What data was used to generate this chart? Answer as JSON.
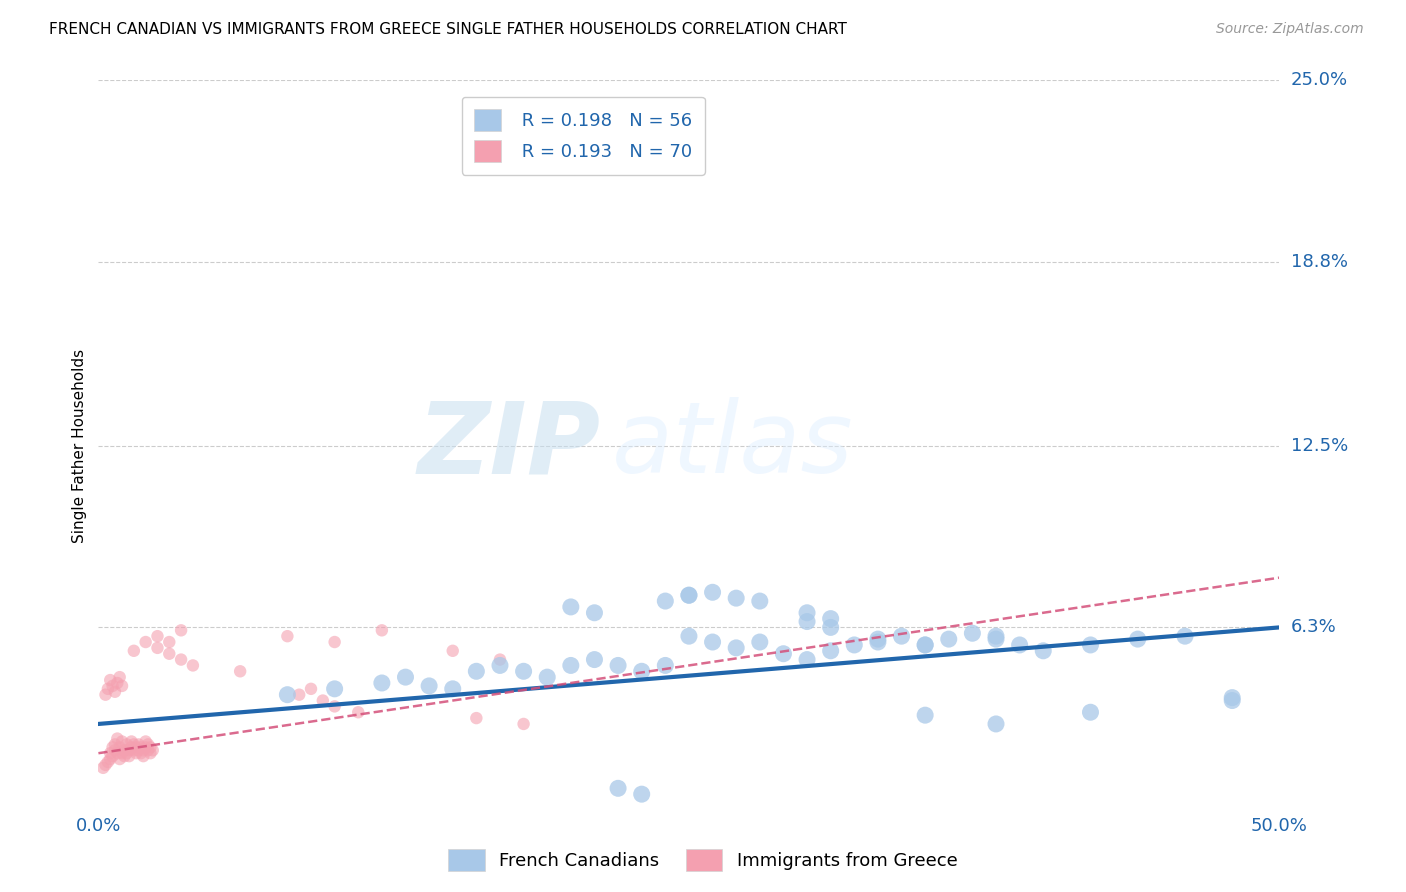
{
  "title": "FRENCH CANADIAN VS IMMIGRANTS FROM GREECE SINGLE FATHER HOUSEHOLDS CORRELATION CHART",
  "source": "Source: ZipAtlas.com",
  "ylabel": "Single Father Households",
  "xlim": [
    0.0,
    0.5
  ],
  "ylim": [
    0.0,
    0.25
  ],
  "grid_color": "#cccccc",
  "background_color": "#ffffff",
  "blue_color": "#a8c8e8",
  "blue_line_color": "#2166ac",
  "pink_color": "#f4a0b0",
  "pink_line_color": "#d4507a",
  "R_blue": 0.198,
  "N_blue": 56,
  "R_pink": 0.193,
  "N_pink": 70,
  "watermark_zip": "ZIP",
  "watermark_atlas": "atlas",
  "legend_label_blue": "French Canadians",
  "legend_label_pink": "Immigrants from Greece",
  "ytick_display": [
    0.063,
    0.125,
    0.188,
    0.25
  ],
  "ytick_labels": [
    "6.3%",
    "12.5%",
    "18.8%",
    "25.0%"
  ],
  "xtick_values": [
    0.0,
    0.1,
    0.2,
    0.3,
    0.4,
    0.5
  ],
  "xtick_labels": [
    "0.0%",
    "",
    "",
    "",
    "",
    "50.0%"
  ],
  "blue_scatter_x": [
    0.08,
    0.1,
    0.12,
    0.13,
    0.14,
    0.15,
    0.16,
    0.17,
    0.18,
    0.19,
    0.2,
    0.21,
    0.22,
    0.23,
    0.24,
    0.25,
    0.26,
    0.27,
    0.28,
    0.29,
    0.3,
    0.31,
    0.32,
    0.33,
    0.34,
    0.35,
    0.36,
    0.37,
    0.38,
    0.39,
    0.25,
    0.26,
    0.27,
    0.28,
    0.22,
    0.23,
    0.3,
    0.31,
    0.33,
    0.35,
    0.38,
    0.4,
    0.42,
    0.44,
    0.46,
    0.48,
    0.2,
    0.21,
    0.24,
    0.25,
    0.3,
    0.31,
    0.35,
    0.38,
    0.42,
    0.48
  ],
  "blue_scatter_y": [
    0.04,
    0.042,
    0.044,
    0.046,
    0.043,
    0.042,
    0.048,
    0.05,
    0.048,
    0.046,
    0.05,
    0.052,
    0.05,
    0.048,
    0.05,
    0.06,
    0.058,
    0.056,
    0.058,
    0.054,
    0.052,
    0.055,
    0.057,
    0.058,
    0.06,
    0.057,
    0.059,
    0.061,
    0.059,
    0.057,
    0.074,
    0.075,
    0.073,
    0.072,
    0.008,
    0.006,
    0.065,
    0.063,
    0.059,
    0.057,
    0.06,
    0.055,
    0.057,
    0.059,
    0.06,
    0.039,
    0.07,
    0.068,
    0.072,
    0.074,
    0.068,
    0.066,
    0.033,
    0.03,
    0.034,
    0.038
  ],
  "pink_scatter_x": [
    0.002,
    0.003,
    0.004,
    0.005,
    0.005,
    0.006,
    0.006,
    0.007,
    0.007,
    0.008,
    0.008,
    0.009,
    0.009,
    0.01,
    0.01,
    0.011,
    0.011,
    0.012,
    0.012,
    0.013,
    0.013,
    0.014,
    0.014,
    0.015,
    0.015,
    0.016,
    0.016,
    0.017,
    0.017,
    0.018,
    0.018,
    0.019,
    0.019,
    0.02,
    0.02,
    0.021,
    0.021,
    0.022,
    0.022,
    0.023,
    0.003,
    0.004,
    0.005,
    0.006,
    0.007,
    0.008,
    0.009,
    0.01,
    0.015,
    0.02,
    0.025,
    0.03,
    0.035,
    0.04,
    0.06,
    0.08,
    0.1,
    0.12,
    0.15,
    0.17,
    0.025,
    0.03,
    0.035,
    0.085,
    0.09,
    0.095,
    0.1,
    0.11,
    0.16,
    0.18
  ],
  "pink_scatter_y": [
    0.015,
    0.016,
    0.017,
    0.018,
    0.02,
    0.019,
    0.022,
    0.021,
    0.023,
    0.02,
    0.025,
    0.022,
    0.018,
    0.02,
    0.024,
    0.019,
    0.021,
    0.02,
    0.023,
    0.021,
    0.019,
    0.022,
    0.024,
    0.021,
    0.023,
    0.02,
    0.022,
    0.021,
    0.023,
    0.02,
    0.022,
    0.021,
    0.019,
    0.022,
    0.024,
    0.021,
    0.023,
    0.02,
    0.022,
    0.021,
    0.04,
    0.042,
    0.045,
    0.043,
    0.041,
    0.044,
    0.046,
    0.043,
    0.055,
    0.058,
    0.056,
    0.054,
    0.052,
    0.05,
    0.048,
    0.06,
    0.058,
    0.062,
    0.055,
    0.052,
    0.06,
    0.058,
    0.062,
    0.04,
    0.042,
    0.038,
    0.036,
    0.034,
    0.032,
    0.03
  ]
}
